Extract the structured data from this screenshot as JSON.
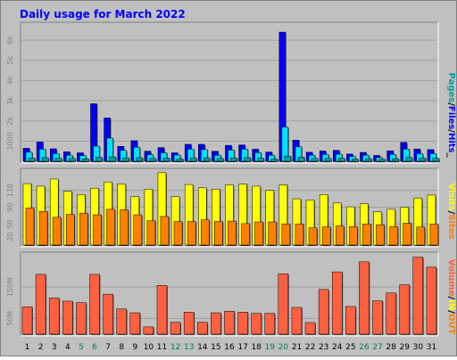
{
  "title": "Daily usage for March 2022",
  "colors": {
    "background": "#c0c0c0",
    "title": "#0000ff",
    "hits": "#0000ff",
    "files": "#00e0ff",
    "pages": "#00a0a0",
    "visits": "#ffff00",
    "sites": "#ff8000",
    "volume": "#ff6040",
    "weekend": "#008040",
    "text": "#000000",
    "axis_label": "#808080"
  },
  "chart_data": [
    {
      "type": "bar",
      "name": "requests",
      "categories": [
        "1",
        "2",
        "3",
        "4",
        "5",
        "6",
        "7",
        "8",
        "9",
        "10",
        "11",
        "12",
        "13",
        "14",
        "15",
        "16",
        "17",
        "18",
        "19",
        "20",
        "21",
        "22",
        "23",
        "24",
        "25",
        "26",
        "27",
        "28",
        "29",
        "30",
        "31"
      ],
      "weekend_days": [
        "5",
        "6",
        "12",
        "13",
        "19",
        "20",
        "26",
        "27"
      ],
      "series": [
        {
          "name": "Hits",
          "values": [
            650,
            960,
            620,
            470,
            420,
            2850,
            2150,
            740,
            1020,
            500,
            680,
            420,
            840,
            840,
            500,
            790,
            810,
            600,
            460,
            6400,
            1050,
            450,
            510,
            540,
            360,
            440,
            290,
            520,
            940,
            610,
            580
          ]
        },
        {
          "name": "Files",
          "values": [
            450,
            600,
            380,
            300,
            280,
            750,
            1150,
            540,
            700,
            330,
            420,
            310,
            600,
            580,
            300,
            560,
            600,
            430,
            300,
            1700,
            720,
            300,
            340,
            350,
            240,
            300,
            190,
            340,
            600,
            380,
            380
          ]
        },
        {
          "name": "Pages",
          "values": [
            160,
            180,
            150,
            140,
            120,
            200,
            220,
            170,
            180,
            140,
            160,
            120,
            170,
            170,
            140,
            170,
            180,
            150,
            120,
            260,
            200,
            140,
            140,
            150,
            110,
            130,
            100,
            130,
            190,
            160,
            150
          ]
        }
      ],
      "yticks": [
        1000,
        2000,
        3000,
        4000,
        5000,
        6000
      ],
      "ytick_labels": [
        "1000",
        "2k",
        "3k",
        "4k",
        "5k",
        "6k"
      ],
      "ylim": [
        0,
        6800
      ],
      "legend": [
        "Pages",
        "/",
        "Files",
        "/",
        "Hits",
        "_"
      ]
    },
    {
      "type": "bar",
      "name": "visitors",
      "categories": [
        "1",
        "2",
        "3",
        "4",
        "5",
        "6",
        "7",
        "8",
        "9",
        "10",
        "11",
        "12",
        "13",
        "14",
        "15",
        "16",
        "17",
        "18",
        "19",
        "20",
        "21",
        "22",
        "23",
        "24",
        "25",
        "26",
        "27",
        "28",
        "29",
        "30",
        "31"
      ],
      "series": [
        {
          "name": "Visits",
          "values": [
            146,
            140,
            157,
            128,
            120,
            135,
            150,
            145,
            115,
            133,
            172,
            115,
            144,
            136,
            133,
            143,
            145,
            140,
            130,
            143,
            110,
            107,
            120,
            100,
            91,
            98,
            79,
            85,
            90,
            112,
            119
          ]
        },
        {
          "name": "Sites",
          "values": [
            88,
            80,
            66,
            73,
            76,
            72,
            85,
            84,
            72,
            58,
            68,
            56,
            56,
            60,
            56,
            57,
            51,
            55,
            55,
            50,
            50,
            41,
            43,
            45,
            44,
            50,
            48,
            44,
            52,
            43,
            50
          ]
        }
      ],
      "yticks": [
        20,
        50,
        90,
        130
      ],
      "ytick_labels": [
        "20",
        "50",
        "90",
        "130"
      ],
      "ylim": [
        0,
        178
      ],
      "legend": [
        "Visits",
        "/",
        "Sites"
      ]
    },
    {
      "type": "bar",
      "name": "volume",
      "categories": [
        "1",
        "2",
        "3",
        "4",
        "5",
        "6",
        "7",
        "8",
        "9",
        "10",
        "11",
        "12",
        "13",
        "14",
        "15",
        "16",
        "17",
        "18",
        "19",
        "20",
        "21",
        "22",
        "23",
        "24",
        "25",
        "26",
        "27",
        "28",
        "29",
        "30",
        "31"
      ],
      "series": [
        {
          "name": "Volume",
          "values": [
            87,
            190,
            115,
            105,
            100,
            190,
            127,
            80,
            68,
            23,
            155,
            38,
            70,
            38,
            68,
            73,
            70,
            66,
            66,
            192,
            85,
            37,
            142,
            198,
            88,
            230,
            106,
            131,
            157,
            245,
            213
          ]
        }
      ],
      "yticks": [
        50,
        150
      ],
      "ytick_labels": [
        "50M",
        "150M"
      ],
      "ylim": [
        0,
        255
      ],
      "legend": [
        "Volume",
        "/",
        "IN",
        "/",
        "OUT"
      ]
    }
  ]
}
